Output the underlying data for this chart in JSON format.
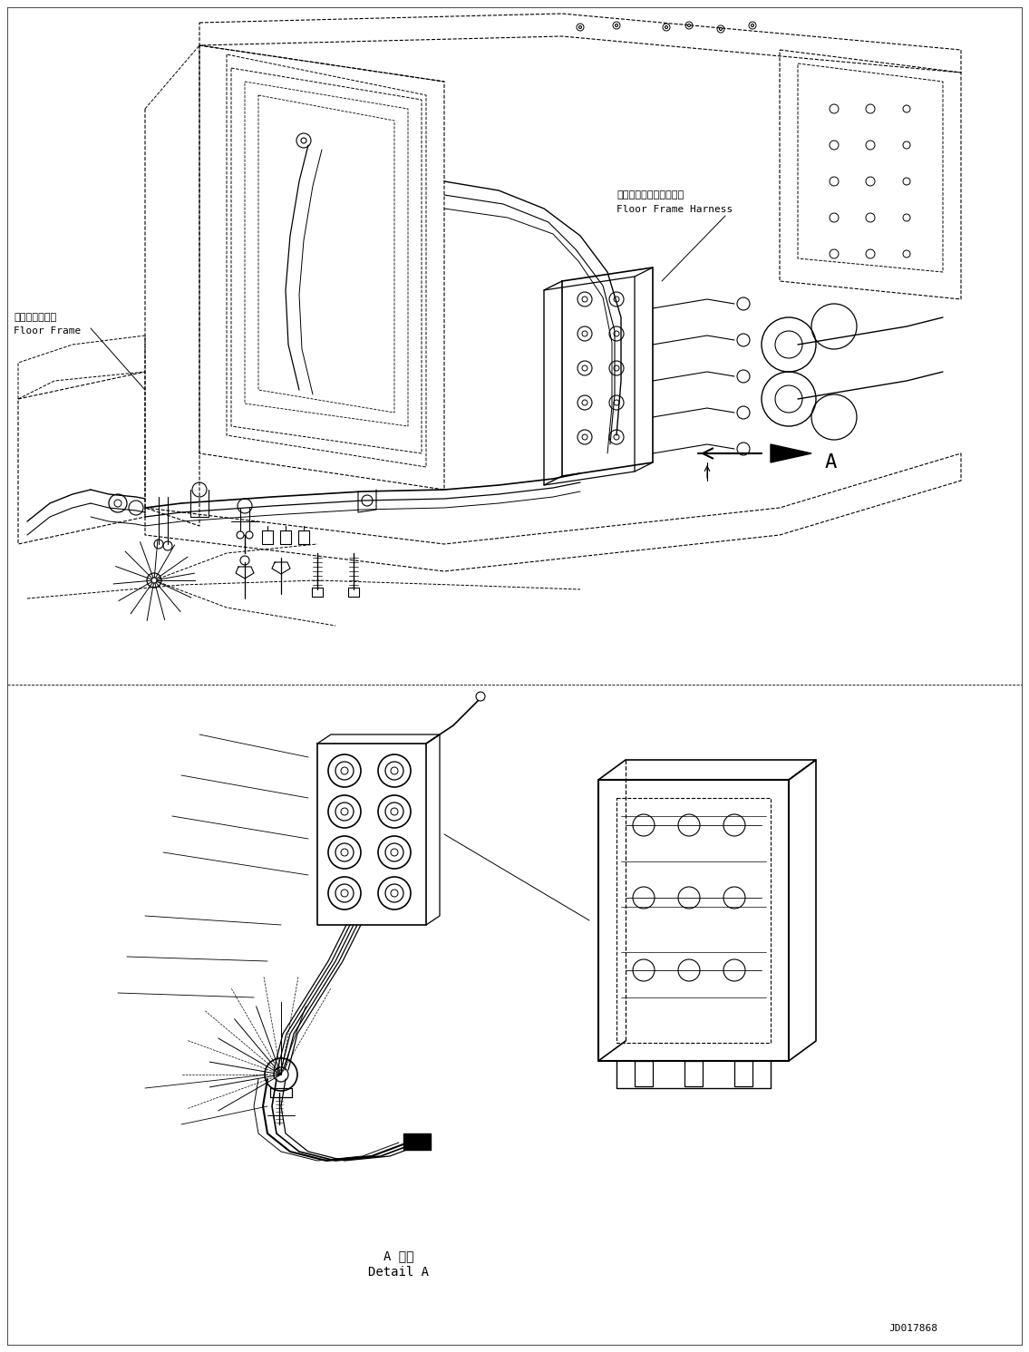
{
  "figure_width": 11.35,
  "figure_height": 14.91,
  "dpi": 100,
  "bg_color": "#ffffff",
  "label_floor_frame_ja": "フロアフレーム",
  "label_floor_frame_en": "Floor Frame",
  "label_harness_ja": "フロアフレームハーネス",
  "label_harness_en": "Floor Frame Harness",
  "label_detail_ja": "A 詳細",
  "label_detail_en": "Detail A",
  "label_A": "A",
  "label_code": "JD017868"
}
